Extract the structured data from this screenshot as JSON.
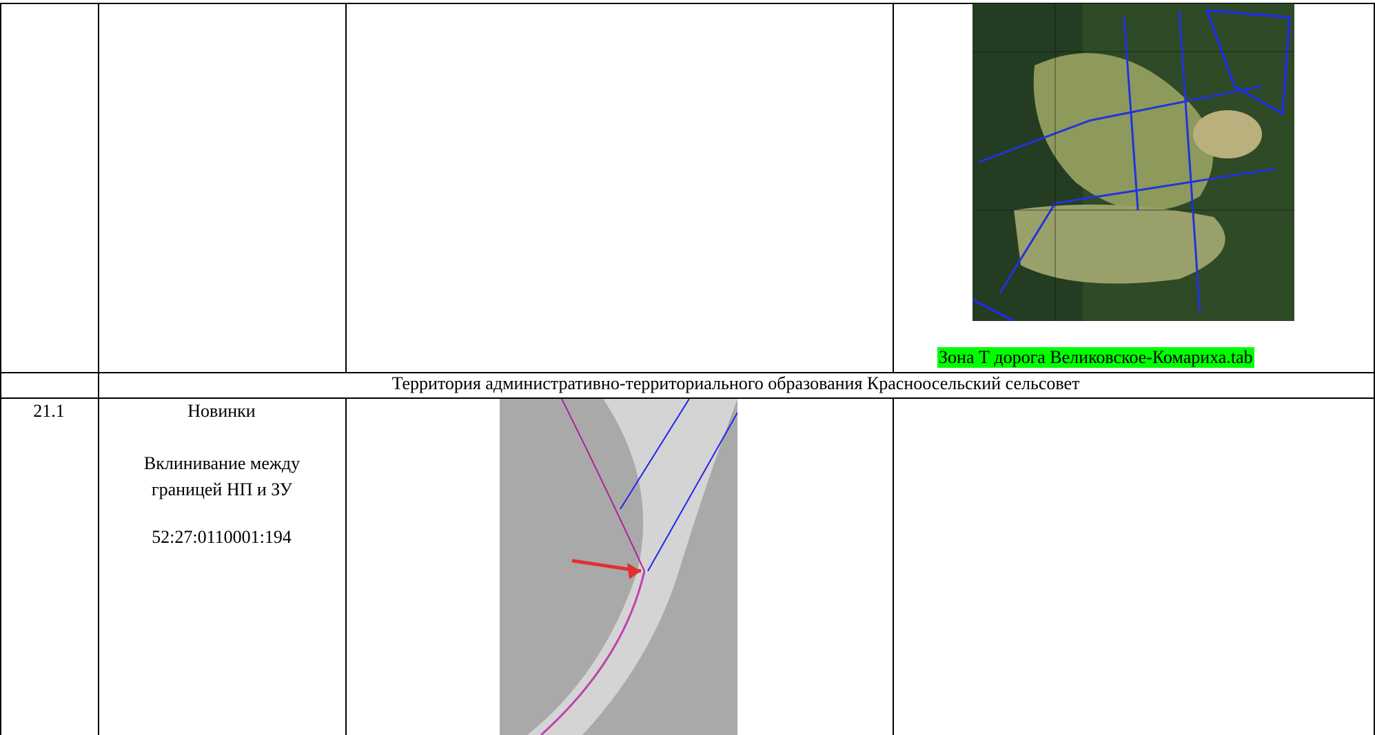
{
  "table": {
    "row_1": {
      "map_caption": "Зона Т дорога Великовское-Комариха.tab"
    },
    "section_title": "Территория административно-территориального образования Красноосельский сельсовет",
    "row_2": {
      "number": "21.1",
      "place": "Новинки",
      "issue": "Вклинивание между границей НП и ЗУ",
      "cadastral_number": "52:27:0110001:194"
    }
  }
}
